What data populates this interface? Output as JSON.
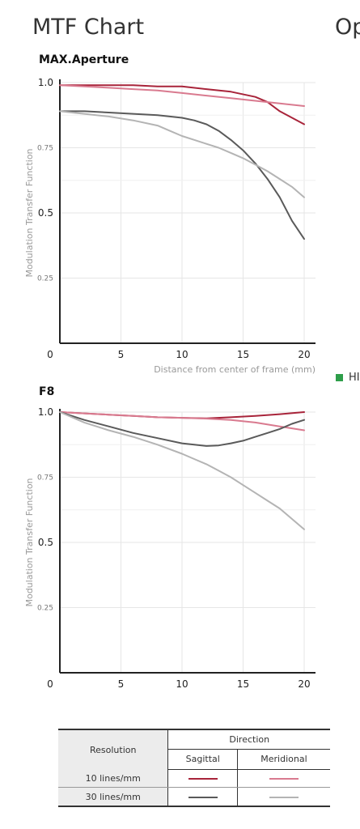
{
  "header": {
    "title": "MTF Chart",
    "side_title": "Op"
  },
  "legend": {
    "marker_color": "#2e9e4a",
    "label": "HI"
  },
  "series_colors": {
    "sag10": "#a8243a",
    "mer10": "#d97a8f",
    "sag30": "#5a5a5a",
    "mer30": "#b4b4b4"
  },
  "chart_data": [
    {
      "type": "line",
      "title": "MAX.Aperture",
      "ylabel": "Modulation Transfer Function",
      "xlabel": "Distance from center of frame (mm)",
      "xlim": [
        0,
        20
      ],
      "ylim": [
        0,
        1.0
      ],
      "xticks": [
        "0",
        "5",
        "10",
        "15",
        "20"
      ],
      "yticks": [
        "1.0",
        "0.75",
        "0.5",
        "0.25"
      ],
      "grid": true,
      "series": [
        {
          "key": "sag10",
          "x": [
            0,
            2,
            4,
            6,
            8,
            10,
            12,
            14,
            16,
            17,
            18,
            20
          ],
          "y": [
            0.99,
            0.99,
            0.99,
            0.99,
            0.985,
            0.985,
            0.975,
            0.965,
            0.945,
            0.925,
            0.89,
            0.84
          ]
        },
        {
          "key": "mer10",
          "x": [
            0,
            2,
            4,
            6,
            8,
            10,
            12,
            14,
            16,
            18,
            20
          ],
          "y": [
            0.99,
            0.985,
            0.98,
            0.975,
            0.97,
            0.96,
            0.95,
            0.94,
            0.93,
            0.92,
            0.91
          ]
        },
        {
          "key": "sag30",
          "x": [
            0,
            2,
            4,
            6,
            8,
            10,
            11,
            12,
            13,
            14,
            15,
            16,
            17,
            18,
            19,
            20
          ],
          "y": [
            0.89,
            0.89,
            0.885,
            0.88,
            0.875,
            0.865,
            0.855,
            0.84,
            0.815,
            0.78,
            0.74,
            0.69,
            0.63,
            0.56,
            0.47,
            0.4
          ]
        },
        {
          "key": "mer30",
          "x": [
            0,
            2,
            4,
            6,
            8,
            9,
            10,
            11,
            12,
            13,
            14,
            15,
            16,
            17,
            18,
            19,
            20
          ],
          "y": [
            0.89,
            0.88,
            0.87,
            0.855,
            0.835,
            0.815,
            0.795,
            0.78,
            0.765,
            0.75,
            0.73,
            0.71,
            0.685,
            0.66,
            0.63,
            0.6,
            0.56
          ]
        }
      ]
    },
    {
      "type": "line",
      "title": "F8",
      "ylabel": "Modulation Transfer Function",
      "xlabel": "",
      "xlim": [
        0,
        20
      ],
      "ylim": [
        0,
        1.0
      ],
      "xticks": [
        "0",
        "5",
        "10",
        "15",
        "20"
      ],
      "yticks": [
        "1.0",
        "0.75",
        "0.5",
        "0.25"
      ],
      "grid": true,
      "series": [
        {
          "key": "sag10",
          "x": [
            0,
            2,
            4,
            6,
            8,
            10,
            12,
            14,
            16,
            18,
            20
          ],
          "y": [
            1.0,
            0.995,
            0.99,
            0.985,
            0.98,
            0.978,
            0.976,
            0.98,
            0.985,
            0.992,
            1.0
          ]
        },
        {
          "key": "mer10",
          "x": [
            0,
            2,
            4,
            6,
            8,
            10,
            12,
            14,
            16,
            18,
            20
          ],
          "y": [
            1.0,
            0.995,
            0.99,
            0.985,
            0.98,
            0.978,
            0.975,
            0.97,
            0.96,
            0.945,
            0.93
          ]
        },
        {
          "key": "sag30",
          "x": [
            0,
            2,
            4,
            6,
            8,
            10,
            11,
            12,
            13,
            14,
            15,
            16,
            17,
            18,
            19,
            20
          ],
          "y": [
            1.0,
            0.97,
            0.945,
            0.92,
            0.9,
            0.88,
            0.875,
            0.87,
            0.872,
            0.88,
            0.89,
            0.905,
            0.92,
            0.935,
            0.955,
            0.97
          ]
        },
        {
          "key": "mer30",
          "x": [
            0,
            2,
            4,
            6,
            8,
            10,
            11,
            12,
            13,
            14,
            15,
            16,
            17,
            18,
            19,
            20
          ],
          "y": [
            1.0,
            0.96,
            0.93,
            0.905,
            0.875,
            0.84,
            0.82,
            0.8,
            0.775,
            0.75,
            0.72,
            0.69,
            0.66,
            0.63,
            0.59,
            0.55
          ]
        }
      ]
    }
  ],
  "key_table": {
    "resolution_header": "Resolution",
    "direction_header": "Direction",
    "sagittal": "Sagittal",
    "meridional": "Meridional",
    "row1": "10 lines/mm",
    "row2": "30 lines/mm"
  }
}
